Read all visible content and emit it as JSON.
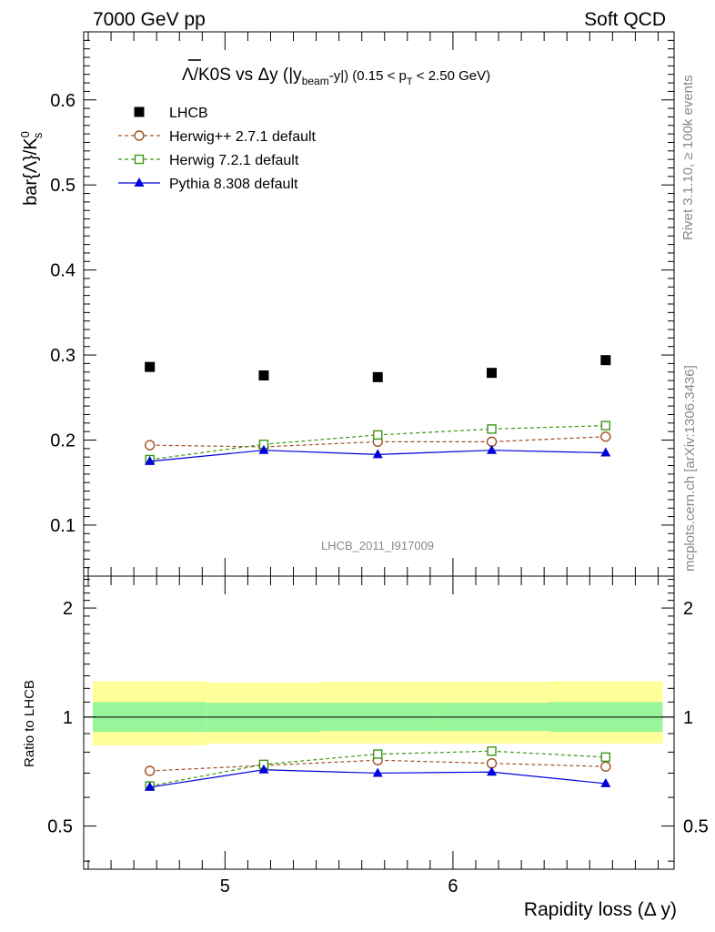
{
  "header": {
    "left": "7000 GeV pp",
    "right": "Soft QCD"
  },
  "title": {
    "prefix": "Λ",
    "mid": "/K0S vs Δy (|y",
    "sub_beam": "beam",
    "after_beam": "-y|) (0.15 < p",
    "sub_t": "T",
    "suffix": " < 2.50 GeV)"
  },
  "ylabel": {
    "main": "bar{Λ}/K",
    "sup": "0",
    "sub": "s"
  },
  "ratio_ylabel": "Ratio to LHCB",
  "xlabel": "Rapidity loss (Δ y)",
  "watermark": "LHCB_2011_I917009",
  "side_text": {
    "top": "Rivet 3.1.10, ≥ 100k events",
    "bottom": "mcplots.cern.ch [arXiv:1306.3436]"
  },
  "legend": [
    {
      "label": "LHCB",
      "marker": "square-filled",
      "color": "#000000"
    },
    {
      "label": "Herwig++ 2.7.1 default",
      "marker": "circle-open",
      "color": "#a0501e"
    },
    {
      "label": "Herwig 7.2.1 default",
      "marker": "square-open",
      "color": "#3c9614"
    },
    {
      "label": "Pythia 8.308 default",
      "marker": "triangle-filled",
      "color": "#0000dc"
    }
  ],
  "chart_data": {
    "type": "scatter",
    "xlabel": "Rapidity loss (Δ y)",
    "ylabel": "bar{Λ}/K0s",
    "x": [
      4.67,
      5.17,
      5.67,
      6.17,
      6.67
    ],
    "xlim": [
      4.38,
      6.97
    ],
    "ylim": [
      0.04,
      0.68
    ],
    "xticks": [
      5,
      6
    ],
    "yticks": [
      0.1,
      0.2,
      0.3,
      0.4,
      0.5,
      0.6
    ],
    "ratio_ylim": [
      0.38,
      2.45
    ],
    "ratio_yticks": [
      0.5,
      1,
      2
    ],
    "band_bins": [
      {
        "x": [
          4.42,
          4.92
        ],
        "inner": [
          0.91,
          1.1
        ],
        "outer": [
          0.835,
          1.255
        ]
      },
      {
        "x": [
          4.92,
          5.42
        ],
        "inner": [
          0.91,
          1.095
        ],
        "outer": [
          0.845,
          1.245
        ]
      },
      {
        "x": [
          5.42,
          5.92
        ],
        "inner": [
          0.915,
          1.095
        ],
        "outer": [
          0.845,
          1.25
        ]
      },
      {
        "x": [
          5.92,
          6.42
        ],
        "inner": [
          0.915,
          1.095
        ],
        "outer": [
          0.845,
          1.25
        ]
      },
      {
        "x": [
          6.42,
          6.92
        ],
        "inner": [
          0.91,
          1.1
        ],
        "outer": [
          0.845,
          1.255
        ]
      }
    ],
    "series": [
      {
        "name": "LHCB",
        "values": [
          0.286,
          0.276,
          0.274,
          0.279,
          0.294
        ],
        "ratio": [
          1,
          1,
          1,
          1,
          1
        ]
      },
      {
        "name": "Herwig++ 2.7.1 default",
        "values": [
          0.194,
          0.192,
          0.198,
          0.198,
          0.204
        ],
        "ratio": [
          0.71,
          0.735,
          0.76,
          0.745,
          0.73
        ]
      },
      {
        "name": "Herwig 7.2.1 default",
        "values": [
          0.177,
          0.195,
          0.206,
          0.213,
          0.217
        ],
        "ratio": [
          0.645,
          0.74,
          0.79,
          0.805,
          0.775
        ]
      },
      {
        "name": "Pythia 8.308 default",
        "values": [
          0.175,
          0.188,
          0.183,
          0.188,
          0.185
        ],
        "ratio": [
          0.64,
          0.715,
          0.7,
          0.705,
          0.655
        ]
      }
    ]
  }
}
